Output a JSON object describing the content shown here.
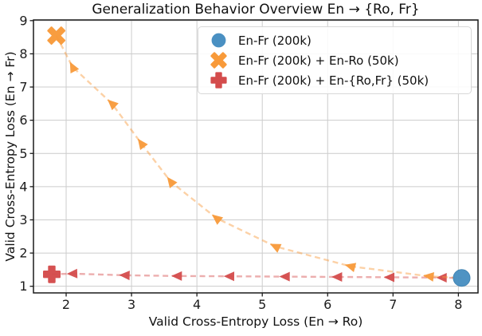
{
  "chart_data": {
    "type": "scatter",
    "title": "Generalization Behavior Overview En → {Ro, Fr}",
    "xlabel": "Valid Cross-Entropy Loss (En → Ro)",
    "ylabel": "Valid Cross-Entropy Loss (En → Fr)",
    "xlim": [
      1.5,
      8.3
    ],
    "ylim": [
      0.8,
      9.02
    ],
    "x_ticks": [
      2,
      3,
      4,
      5,
      6,
      7,
      8
    ],
    "y_ticks": [
      1,
      2,
      3,
      4,
      5,
      6,
      7,
      8,
      9
    ],
    "grid": true,
    "grid_color": "#cccccc",
    "axis_color": "#1a1a1a",
    "legend_position": "upper right",
    "legend_border_color": "#d8d8d8",
    "series": [
      {
        "name": "En-Fr (200k)",
        "marker": "circle",
        "color": "#4a90c2",
        "line_style": "none",
        "points": [
          [
            8.05,
            1.25
          ]
        ]
      },
      {
        "name": "En-Fr (200k) + En-Ro (50k)",
        "marker": "x",
        "color": "#f89a3a",
        "line_style": "dashed",
        "line_opacity": 0.45,
        "arrows": true,
        "points": [
          [
            1.85,
            8.55
          ],
          [
            2.1,
            7.6
          ],
          [
            2.7,
            6.5
          ],
          [
            3.15,
            5.3
          ],
          [
            3.6,
            4.15
          ],
          [
            4.3,
            3.05
          ],
          [
            5.2,
            2.2
          ],
          [
            6.35,
            1.6
          ],
          [
            7.55,
            1.3
          ],
          [
            8.05,
            1.25
          ]
        ]
      },
      {
        "name": "En-Fr (200k) + En-{Ro,Fr} (50k)",
        "marker": "plus",
        "color": "#d44c4c",
        "line_style": "dashed",
        "line_opacity": 0.45,
        "arrows": true,
        "points": [
          [
            1.78,
            1.36
          ],
          [
            2.1,
            1.38
          ],
          [
            2.9,
            1.33
          ],
          [
            3.7,
            1.31
          ],
          [
            4.5,
            1.3
          ],
          [
            5.35,
            1.29
          ],
          [
            6.15,
            1.28
          ],
          [
            6.95,
            1.27
          ],
          [
            7.75,
            1.26
          ],
          [
            8.05,
            1.25
          ]
        ]
      }
    ]
  }
}
